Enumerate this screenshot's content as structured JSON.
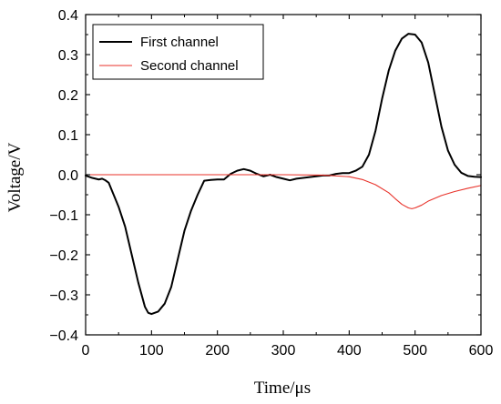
{
  "chart_data": {
    "type": "line",
    "xlabel": "Time/μs",
    "ylabel": "Voltage/V",
    "xlim": [
      0,
      600
    ],
    "ylim": [
      -0.4,
      0.4
    ],
    "x_ticks": [
      0,
      100,
      200,
      300,
      400,
      500,
      600
    ],
    "x_tick_labels": [
      "0",
      "100",
      "200",
      "300",
      "400",
      "500",
      "600"
    ],
    "y_ticks": [
      -0.4,
      -0.3,
      -0.2,
      -0.1,
      0.0,
      0.1,
      0.2,
      0.3,
      0.4
    ],
    "y_tick_labels": [
      "−0.4",
      "−0.3",
      "−0.2",
      "−0.1",
      "0.0",
      "0.1",
      "0.2",
      "0.3",
      "0.4"
    ],
    "grid": false,
    "legend_position": "top-left",
    "series": [
      {
        "name": "First channel",
        "color": "#000000",
        "points": [
          [
            0,
            -0.002
          ],
          [
            10,
            -0.008
          ],
          [
            20,
            -0.012
          ],
          [
            25,
            -0.01
          ],
          [
            30,
            -0.014
          ],
          [
            35,
            -0.02
          ],
          [
            40,
            -0.04
          ],
          [
            50,
            -0.08
          ],
          [
            60,
            -0.13
          ],
          [
            70,
            -0.2
          ],
          [
            80,
            -0.27
          ],
          [
            90,
            -0.33
          ],
          [
            95,
            -0.345
          ],
          [
            100,
            -0.348
          ],
          [
            110,
            -0.342
          ],
          [
            120,
            -0.322
          ],
          [
            130,
            -0.28
          ],
          [
            140,
            -0.21
          ],
          [
            150,
            -0.14
          ],
          [
            160,
            -0.09
          ],
          [
            170,
            -0.05
          ],
          [
            180,
            -0.015
          ],
          [
            190,
            -0.013
          ],
          [
            200,
            -0.012
          ],
          [
            210,
            -0.012
          ],
          [
            220,
            0.002
          ],
          [
            230,
            0.01
          ],
          [
            240,
            0.014
          ],
          [
            250,
            0.01
          ],
          [
            260,
            0.002
          ],
          [
            270,
            -0.004
          ],
          [
            280,
            0.0
          ],
          [
            290,
            -0.006
          ],
          [
            300,
            -0.01
          ],
          [
            310,
            -0.014
          ],
          [
            320,
            -0.01
          ],
          [
            330,
            -0.008
          ],
          [
            340,
            -0.006
          ],
          [
            350,
            -0.004
          ],
          [
            360,
            -0.002
          ],
          [
            370,
            -0.002
          ],
          [
            380,
            0.002
          ],
          [
            390,
            0.004
          ],
          [
            400,
            0.004
          ],
          [
            410,
            0.01
          ],
          [
            420,
            0.02
          ],
          [
            430,
            0.05
          ],
          [
            440,
            0.11
          ],
          [
            450,
            0.19
          ],
          [
            460,
            0.26
          ],
          [
            470,
            0.31
          ],
          [
            480,
            0.34
          ],
          [
            490,
            0.352
          ],
          [
            500,
            0.35
          ],
          [
            510,
            0.33
          ],
          [
            520,
            0.28
          ],
          [
            530,
            0.2
          ],
          [
            540,
            0.12
          ],
          [
            550,
            0.06
          ],
          [
            560,
            0.025
          ],
          [
            570,
            0.005
          ],
          [
            580,
            -0.003
          ],
          [
            590,
            -0.005
          ],
          [
            600,
            -0.006
          ]
        ]
      },
      {
        "name": "Second channel",
        "color": "#e8322a",
        "points": [
          [
            0,
            0.0
          ],
          [
            300,
            0.0
          ],
          [
            360,
            -0.001
          ],
          [
            400,
            -0.005
          ],
          [
            420,
            -0.012
          ],
          [
            440,
            -0.025
          ],
          [
            460,
            -0.045
          ],
          [
            470,
            -0.06
          ],
          [
            480,
            -0.074
          ],
          [
            490,
            -0.083
          ],
          [
            495,
            -0.085
          ],
          [
            500,
            -0.083
          ],
          [
            510,
            -0.076
          ],
          [
            520,
            -0.066
          ],
          [
            540,
            -0.052
          ],
          [
            560,
            -0.042
          ],
          [
            580,
            -0.034
          ],
          [
            600,
            -0.027
          ]
        ]
      }
    ]
  }
}
